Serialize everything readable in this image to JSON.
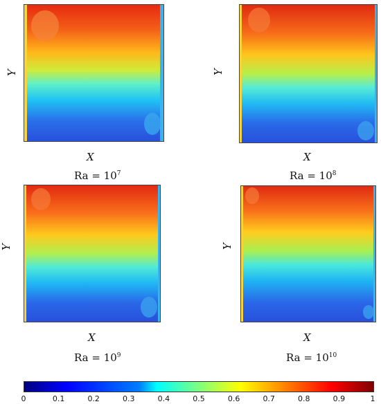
{
  "panels": [
    {
      "axis_x": "X",
      "axis_y": "Y",
      "ra_base": "Ra = 10",
      "ra_exp": "7"
    },
    {
      "axis_x": "X",
      "axis_y": "Y",
      "ra_base": "Ra = 10",
      "ra_exp": "8"
    },
    {
      "axis_x": "X",
      "axis_y": "Y",
      "ra_base": "Ra = 10",
      "ra_exp": "9"
    },
    {
      "axis_x": "X",
      "axis_y": "Y",
      "ra_base": "Ra = 10",
      "ra_exp": "10"
    }
  ],
  "colorbar": {
    "ticks": [
      "0",
      "0.1",
      "0.2",
      "0.3",
      "0.4",
      "0.5",
      "0.6",
      "0.7",
      "0.8",
      "0.9",
      "1"
    ],
    "colormap": [
      "#00007f",
      "#0000ff",
      "#007fff",
      "#00ffff",
      "#7fff7f",
      "#ffff00",
      "#ff7f00",
      "#ff0000",
      "#7f0000"
    ]
  }
}
